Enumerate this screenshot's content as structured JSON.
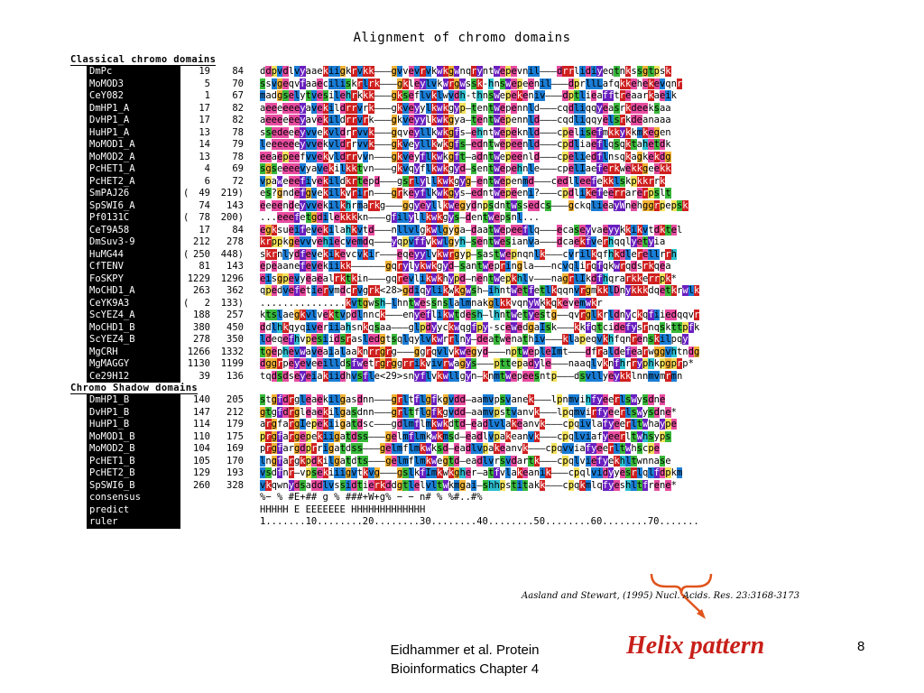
{
  "title": "Alignment of chromo domains",
  "sections": [
    {
      "header": "Classical chromo domains",
      "rows": [
        {
          "name": "DmPc",
          "paren": "",
          "start": "19",
          "end": "84",
          "seq": "ddpvdlvyaaekiigkrvkk———gvvevrvkwkgwnqryntwepevnil———drrlidiyeqtnkssgtpsk"
        },
        {
          "name": "MoMOD3",
          "paren": "",
          "start": "5",
          "end": "70",
          "seq": "ssvgeqvfaaeciliskrlrk———gkleylvkwrgwssk-hnswepeenil———dprllLafqkkehekevqnr"
        },
        {
          "name": "CeY082",
          "paren": "",
          "start": "1",
          "end": "67",
          "seq": "madgselytvesilehrkkk———gkseflvklwvdh-thnswepekeniv———dptlieafftreaarkaeik"
        },
        {
          "name": "DmHP1_A",
          "paren": "",
          "start": "17",
          "end": "82",
          "seq": "aeeeeeeyavekildrrvrk———gkveyylkwkgyp—tentwepennld———cqdliqqyeasrkdeeksaa"
        },
        {
          "name": "DvHP1_A",
          "paren": "",
          "start": "17",
          "end": "82",
          "seq": "aeeeeeeyavekildrrvrk———gkveyylkwkgya—tentwepennld———cqdliqqyelsrkdeanaaa"
        },
        {
          "name": "HuHP1_A",
          "paren": "",
          "start": "13",
          "end": "78",
          "seq": "ssedeeeyvvekvldrrvvk———gqveyllkwkgfs—ehntwepeknld———cpelisefmkkykkmkegen"
        },
        {
          "name": "MoMOD1_A",
          "paren": "",
          "start": "14",
          "end": "79",
          "seq": "leeeeeeyvvekvldrrvvk———gkveyllkwkgfs—edntwepeenld———cpdliaeflqsqktahetdk"
        },
        {
          "name": "MoMOD2_A",
          "paren": "",
          "start": "13",
          "end": "78",
          "seq": "eeaepeefvvekvldrrvvn———gkveyflkwkgft—adntwepeenld———cpeliedflnsqkagkekdg"
        },
        {
          "name": "PcHET1_A",
          "paren": "",
          "start": "4",
          "end": "69",
          "seq": "sgseeeevyavekilkktvn———gkvqyflkwkgyd—sentwepehnle———cpelIaeferkwekkgeekk"
        },
        {
          "name": "PcHET2_A",
          "paren": "",
          "start": "6",
          "end": "72",
          "seq": "vpaweeefivekildkrtepd———gsrlyllkwkgyg—entwepenmd———cedlleefekklskpkkrrk"
        },
        {
          "name": "SmPAJ26",
          "paren": "(",
          "start": "49",
          "end": "219)",
          "seq": "es?gndefgvekilkvrirn———grkeyflkwkgys—edntwepeeni?———cpdlikefeerrarerpslt"
        },
        {
          "name": "SpSWI6_A",
          "paren": "",
          "start": "74",
          "end": "143",
          "seq": "eeeendeyvvekilkhrmarkg———ggyeyllkwegydnpsdntwssedcs———gckqlieayWnehggrpepsk"
        },
        {
          "name": "Pf0131C",
          "paren": "(",
          "start": "78",
          "end": "200)",
          "seq": "...eeefetgdilekkkkn———gfilyllkwkgys—dentwepsnl..."
        },
        {
          "name": "CeT9A58",
          "paren": "",
          "start": "17",
          "end": "84",
          "seq": "egksueifevekilahkvtd———nllvlgkwlgyga—daatwepeeflq———ecaseyvaeyykkikvtdktel"
        },
        {
          "name": "DmSuv3-9",
          "paren": "",
          "start": "212",
          "end": "278",
          "seq": "krppkgevvvehiecvemdq———yqpvffvkwlgyh—sentwesianva———dcaekfverhqqlyetyia"
        },
        {
          "name": "HuMG44",
          "paren": "(",
          "start": "250",
          "end": "448)",
          "seq": "skrnlydfevekikevcvkir———eqeyylvkwrgyp—sastwepnqnlk———cvrilkqfhkdlerellrrh"
        },
        {
          "name": "CfTENV",
          "paren": "",
          "start": "81",
          "end": "143",
          "seq": "epeaanefevekiikk——————gqrylykwkgyd—santwepringla———ncvqlirqfqkwrqdsrkqea"
        },
        {
          "name": "FoSKPY",
          "paren": "",
          "start": "1229",
          "end": "1296",
          "seq": "eisgpevyeaealrktkin———gqrevlikwkhypd—nentwepkhlv———nagrlIkdfhqrarkkerrpk*"
        },
        {
          "name": "MoCHD1_A",
          "paren": "",
          "start": "263",
          "end": "362",
          "seq": "qpedvefetiervmdcrvgrk<28>gdiqylikwkgwsh—ihntwetfetlkqqnvrgmkklDnykkkdqetkrwlk"
        },
        {
          "name": "CeYK9A3",
          "paren": "(",
          "start": "2",
          "end": "133)",
          "seq": "...............kvtgwsh—lhntwessnslalmnakglkkvqnyWkkqkevemwkr"
        },
        {
          "name": "ScYEZ4_A",
          "paren": "",
          "start": "188",
          "end": "257",
          "seq": "ktslaegkvlvektvpdlnnck———enyeflikwtdesh—lhntwetyestg——qvrglkrldnyckqfiiedqqvr"
        },
        {
          "name": "MoCHD1_B",
          "paren": "",
          "start": "380",
          "end": "450",
          "seq": "ddlhkqyqiveriiahsnkqsaa———glpdyyckwqgfpy-scewedgaIsk———kkfqtcidefysrnqskttpfk"
        },
        {
          "name": "ScYEZ4_B",
          "paren": "",
          "start": "278",
          "end": "350",
          "seq": "ldeqefhvpesiidsrasledgtsqlqylvkwrrlny—deatwenathiv———klapeqvkhfqnrenskilpqy"
        },
        {
          "name": "MgCRH",
          "paren": "",
          "start": "1266",
          "end": "1332",
          "seq": "tgephevwaveaialaaknrrgrg———ggrqvlvkwegyd———nptwepleImt———dfraldefearwggvhtndg"
        },
        {
          "name": "MgMAGGY",
          "paren": "",
          "start": "1130",
          "end": "1199",
          "seq": "dggrpeyeveeilldsfwetrgrggrrikvivrwagys———pttepadyle———naaqlvknfhrryphkpgprp*"
        },
        {
          "name": "Ce29H12",
          "paren": "",
          "start": "39",
          "end": "136",
          "seq": "tqdsdseyeiakiidhvsfle<29>snyflvkwllgyn—knmtwepeesntp———dsvllyeykklnnmvmrmn"
        }
      ]
    },
    {
      "header": "Chromo Shadow domains",
      "rows": [
        {
          "name": "DmHP1_B",
          "paren": "",
          "start": "140",
          "end": "205",
          "seq": "stgfdrgleaekilgasdnn———grltflgfkgvdd—aamvpsvanek———lpnmvihfyeerlswysdne"
        },
        {
          "name": "DvHP1_B",
          "paren": "",
          "start": "147",
          "end": "212",
          "seq": "gtgfdrgleaekilgasdnn———grltflgfkgvdd—aamvpstvanvk———lpqmvirfyeerlswysdne*"
        },
        {
          "name": "HuHP1_B",
          "paren": "",
          "start": "114",
          "end": "179",
          "seq": "argfargIepekiigatdsc———gdlmflmkwkdtd—eadlvlakeanvk———cpqivlafyeerltwhaype"
        },
        {
          "name": "MoMOD1_B",
          "paren": "",
          "start": "110",
          "end": "175",
          "seq": "prgfargepekiigatdss———gelmflmkwkmsd—eadlvpakeanvk———cpqlviafyeerltwhsyps"
        },
        {
          "name": "MoMOD2_B",
          "paren": "",
          "start": "104",
          "end": "169",
          "seq": "prgfargdprrigatdss———gelmflmkwksd—eadlvpakeanvk———cpqvviafyeerltwhscpe"
        },
        {
          "name": "PcHET1_B",
          "paren": "",
          "start": "105",
          "end": "170",
          "seq": "lngfargkpdkilgatdts———gelmflmkwegtd—eadlvrsvdartk———cpqlviefyekhltwnnase"
        },
        {
          "name": "PcHET2_B",
          "paren": "",
          "start": "129",
          "end": "193",
          "seq": "vsdfnr—vpsekiiigvtkvg———gslkfImkwkgher—atfvlakeanik———cpqlvidyyesrlqlfdpkm"
        },
        {
          "name": "SpSWI6_B",
          "paren": "",
          "start": "260",
          "end": "328",
          "seq": "vkqwnydsaddlvssidtierkddgtlelvltwkmgai—shhpstitakk———cpqkmlqfyeshltfrene*"
        }
      ]
    }
  ],
  "bottom_rows": [
    {
      "name": "consensus",
      "seq": "%−  % #E+##        g % ###+W+g% −  −         n#      %  %#..#%"
    },
    {
      "name": "predict",
      "seq": "HHHHH E            EEEEEEE                      HHHHHHHHHHHHH"
    },
    {
      "name": "ruler",
      "seq": "1.......10........20........30........40........50........60........70......."
    }
  ],
  "citation": "Aasland and Stewart, (1995) Nucl. Acids. Res. 23:3168-3173",
  "footer": {
    "line1": "Eidhammer et al. Protein",
    "line2": "Bioinformatics Chapter 4"
  },
  "helix_label": "Helix pattern",
  "page_number": "8",
  "colors": {
    "blue": "#1a7dd6",
    "purple": "#6a1fc0",
    "green": "#38b83a",
    "red": "#d02020",
    "orange": "#f2b234",
    "helix_text": "#c8201a"
  }
}
